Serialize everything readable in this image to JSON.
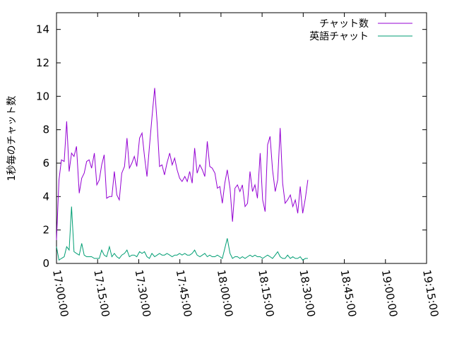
{
  "chart_data": {
    "type": "line",
    "ylabel": "1秒毎のチャット数",
    "xlabel": "",
    "ylim": [
      0,
      15
    ],
    "yticks": [
      0,
      2,
      4,
      6,
      8,
      10,
      12,
      14
    ],
    "xlim_minutes_from_1700": [
      0,
      135
    ],
    "xticks": [
      "17:00:00",
      "17:15:00",
      "17:30:00",
      "17:45:00",
      "18:00:00",
      "18:15:00",
      "18:30:00",
      "18:45:00",
      "19:00:00",
      "19:15:00"
    ],
    "legend_position": "top-right",
    "grid": false,
    "series": [
      {
        "name": "チャット数",
        "color": "#9400d3",
        "points": [
          [
            0.0,
            1.4
          ],
          [
            0.9,
            5.0
          ],
          [
            1.8,
            6.2
          ],
          [
            2.8,
            6.1
          ],
          [
            3.7,
            8.5
          ],
          [
            4.6,
            5.5
          ],
          [
            5.5,
            6.6
          ],
          [
            6.4,
            6.4
          ],
          [
            7.3,
            7.0
          ],
          [
            8.3,
            4.2
          ],
          [
            9.2,
            5.1
          ],
          [
            10.1,
            5.4
          ],
          [
            11.0,
            6.1
          ],
          [
            11.9,
            6.2
          ],
          [
            12.8,
            5.7
          ],
          [
            13.8,
            6.6
          ],
          [
            14.7,
            4.7
          ],
          [
            15.6,
            5.0
          ],
          [
            16.5,
            5.9
          ],
          [
            17.4,
            6.5
          ],
          [
            18.3,
            3.9
          ],
          [
            19.3,
            4.0
          ],
          [
            20.2,
            4.0
          ],
          [
            21.1,
            5.5
          ],
          [
            22.0,
            4.1
          ],
          [
            22.9,
            3.8
          ],
          [
            23.8,
            5.4
          ],
          [
            24.8,
            5.8
          ],
          [
            25.7,
            7.5
          ],
          [
            26.6,
            5.7
          ],
          [
            27.5,
            6.0
          ],
          [
            28.4,
            6.4
          ],
          [
            29.3,
            5.8
          ],
          [
            30.3,
            7.5
          ],
          [
            31.2,
            7.8
          ],
          [
            32.1,
            6.4
          ],
          [
            33.0,
            5.2
          ],
          [
            33.9,
            7.0
          ],
          [
            34.8,
            8.7
          ],
          [
            35.8,
            10.5
          ],
          [
            36.7,
            8.4
          ],
          [
            37.6,
            5.8
          ],
          [
            38.5,
            5.9
          ],
          [
            39.4,
            5.3
          ],
          [
            40.3,
            6.0
          ],
          [
            41.3,
            6.6
          ],
          [
            42.2,
            5.9
          ],
          [
            43.1,
            6.3
          ],
          [
            44.0,
            5.6
          ],
          [
            44.9,
            5.1
          ],
          [
            45.8,
            4.9
          ],
          [
            46.8,
            5.2
          ],
          [
            47.7,
            4.9
          ],
          [
            48.6,
            5.5
          ],
          [
            49.5,
            4.8
          ],
          [
            50.4,
            6.9
          ],
          [
            51.3,
            5.4
          ],
          [
            52.3,
            5.9
          ],
          [
            53.2,
            5.6
          ],
          [
            54.1,
            5.2
          ],
          [
            55.0,
            7.3
          ],
          [
            55.9,
            5.8
          ],
          [
            56.8,
            5.7
          ],
          [
            57.8,
            5.4
          ],
          [
            58.7,
            4.5
          ],
          [
            59.6,
            4.6
          ],
          [
            60.5,
            3.6
          ],
          [
            61.4,
            4.8
          ],
          [
            62.3,
            5.6
          ],
          [
            63.3,
            4.5
          ],
          [
            64.2,
            2.5
          ],
          [
            65.1,
            4.5
          ],
          [
            66.0,
            4.7
          ],
          [
            66.9,
            4.3
          ],
          [
            67.8,
            4.7
          ],
          [
            68.8,
            3.4
          ],
          [
            69.7,
            3.6
          ],
          [
            70.6,
            5.5
          ],
          [
            71.5,
            4.3
          ],
          [
            72.4,
            4.7
          ],
          [
            73.3,
            3.9
          ],
          [
            74.3,
            6.6
          ],
          [
            75.2,
            3.8
          ],
          [
            76.1,
            3.1
          ],
          [
            77.0,
            7.1
          ],
          [
            77.9,
            7.6
          ],
          [
            78.8,
            5.6
          ],
          [
            79.8,
            4.3
          ],
          [
            80.7,
            5.0
          ],
          [
            81.6,
            8.1
          ],
          [
            82.5,
            4.8
          ],
          [
            83.4,
            3.6
          ],
          [
            84.3,
            3.8
          ],
          [
            85.3,
            4.1
          ],
          [
            86.2,
            3.4
          ],
          [
            87.1,
            3.8
          ],
          [
            88.0,
            3.0
          ],
          [
            88.9,
            4.6
          ],
          [
            89.8,
            3.0
          ],
          [
            90.8,
            3.9
          ],
          [
            91.7,
            5.0
          ]
        ]
      },
      {
        "name": "英語チャット",
        "color": "#009e73",
        "points": [
          [
            0.0,
            1.0
          ],
          [
            0.9,
            0.2
          ],
          [
            1.8,
            0.3
          ],
          [
            2.8,
            0.4
          ],
          [
            3.7,
            1.0
          ],
          [
            4.6,
            0.8
          ],
          [
            5.5,
            3.4
          ],
          [
            6.4,
            0.7
          ],
          [
            7.3,
            0.6
          ],
          [
            8.3,
            0.5
          ],
          [
            9.2,
            1.2
          ],
          [
            10.1,
            0.5
          ],
          [
            11.0,
            0.4
          ],
          [
            11.9,
            0.4
          ],
          [
            12.8,
            0.4
          ],
          [
            13.8,
            0.3
          ],
          [
            14.7,
            0.3
          ],
          [
            15.6,
            0.3
          ],
          [
            16.5,
            0.8
          ],
          [
            17.4,
            0.5
          ],
          [
            18.3,
            0.4
          ],
          [
            19.3,
            1.0
          ],
          [
            20.2,
            0.4
          ],
          [
            21.1,
            0.6
          ],
          [
            22.0,
            0.4
          ],
          [
            22.9,
            0.3
          ],
          [
            23.8,
            0.5
          ],
          [
            24.8,
            0.6
          ],
          [
            25.7,
            0.8
          ],
          [
            26.6,
            0.4
          ],
          [
            27.5,
            0.5
          ],
          [
            28.4,
            0.5
          ],
          [
            29.3,
            0.4
          ],
          [
            30.3,
            0.7
          ],
          [
            31.2,
            0.6
          ],
          [
            32.1,
            0.7
          ],
          [
            33.0,
            0.4
          ],
          [
            33.9,
            0.3
          ],
          [
            34.8,
            0.6
          ],
          [
            35.8,
            0.4
          ],
          [
            36.7,
            0.5
          ],
          [
            37.6,
            0.6
          ],
          [
            38.5,
            0.5
          ],
          [
            39.4,
            0.5
          ],
          [
            40.3,
            0.6
          ],
          [
            41.3,
            0.5
          ],
          [
            42.2,
            0.4
          ],
          [
            43.1,
            0.5
          ],
          [
            44.0,
            0.5
          ],
          [
            44.9,
            0.6
          ],
          [
            45.8,
            0.5
          ],
          [
            46.8,
            0.6
          ],
          [
            47.7,
            0.5
          ],
          [
            48.6,
            0.5
          ],
          [
            49.5,
            0.6
          ],
          [
            50.4,
            0.8
          ],
          [
            51.3,
            0.5
          ],
          [
            52.3,
            0.4
          ],
          [
            53.2,
            0.5
          ],
          [
            54.1,
            0.6
          ],
          [
            55.0,
            0.4
          ],
          [
            55.9,
            0.5
          ],
          [
            56.8,
            0.4
          ],
          [
            57.8,
            0.4
          ],
          [
            58.7,
            0.5
          ],
          [
            59.6,
            0.4
          ],
          [
            60.5,
            0.3
          ],
          [
            61.4,
            0.9
          ],
          [
            62.3,
            1.5
          ],
          [
            63.3,
            0.6
          ],
          [
            64.2,
            0.3
          ],
          [
            65.1,
            0.4
          ],
          [
            66.0,
            0.4
          ],
          [
            66.9,
            0.3
          ],
          [
            67.8,
            0.4
          ],
          [
            68.8,
            0.3
          ],
          [
            69.7,
            0.4
          ],
          [
            70.6,
            0.5
          ],
          [
            71.5,
            0.4
          ],
          [
            72.4,
            0.5
          ],
          [
            73.3,
            0.4
          ],
          [
            74.3,
            0.4
          ],
          [
            75.2,
            0.3
          ],
          [
            76.1,
            0.4
          ],
          [
            77.0,
            0.5
          ],
          [
            77.9,
            0.4
          ],
          [
            78.8,
            0.3
          ],
          [
            79.8,
            0.5
          ],
          [
            80.7,
            0.7
          ],
          [
            81.6,
            0.4
          ],
          [
            82.5,
            0.3
          ],
          [
            83.4,
            0.3
          ],
          [
            84.3,
            0.5
          ],
          [
            85.3,
            0.3
          ],
          [
            86.2,
            0.4
          ],
          [
            87.1,
            0.3
          ],
          [
            88.0,
            0.3
          ],
          [
            88.9,
            0.4
          ],
          [
            89.8,
            0.2
          ],
          [
            90.8,
            0.3
          ],
          [
            91.7,
            0.3
          ]
        ]
      }
    ]
  }
}
